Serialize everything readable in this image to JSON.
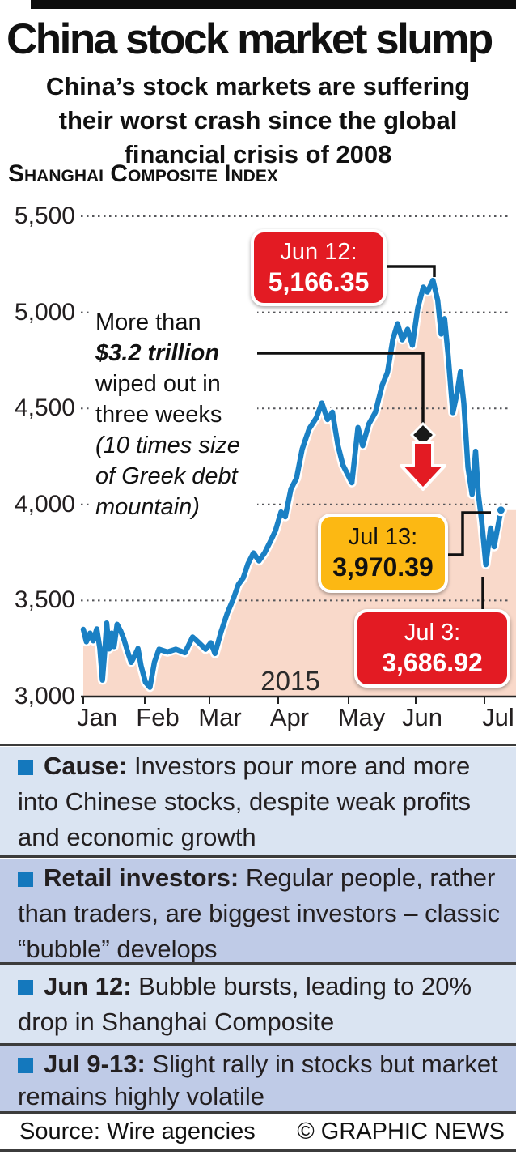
{
  "header": {
    "title": "China stock market slump",
    "subtitle_lines": [
      "China’s stock markets are suffering",
      "their worst crash since the global",
      "financial crisis of 2008"
    ],
    "chart_heading": "Shanghai Composite Index"
  },
  "chart_data": {
    "type": "area",
    "title": "Shanghai Composite Index",
    "xlabel": "",
    "ylabel": "",
    "ylim": [
      3000,
      5500
    ],
    "y_ticks": [
      3000,
      3500,
      4000,
      4500,
      5000,
      5500
    ],
    "x_tick_labels": [
      "Jan",
      "Feb",
      "Mar",
      "Apr",
      "May",
      "Jun",
      "Jul"
    ],
    "year_label": "2015",
    "grid": "dotted-horizontal",
    "series": [
      {
        "name": "Shanghai Composite Index 2015 (x = months since Jan 1)",
        "points": [
          [
            0,
            3350
          ],
          [
            0.05,
            3285
          ],
          [
            0.11,
            3330
          ],
          [
            0.16,
            3290
          ],
          [
            0.22,
            3352
          ],
          [
            0.27,
            3250
          ],
          [
            0.31,
            3086
          ],
          [
            0.35,
            3240
          ],
          [
            0.38,
            3383
          ],
          [
            0.42,
            3248
          ],
          [
            0.46,
            3330
          ],
          [
            0.5,
            3260
          ],
          [
            0.55,
            3376
          ],
          [
            0.61,
            3340
          ],
          [
            0.66,
            3298
          ],
          [
            0.72,
            3235
          ],
          [
            0.78,
            3178
          ],
          [
            0.84,
            3215
          ],
          [
            0.89,
            3250
          ],
          [
            0.94,
            3160
          ],
          [
            1.01,
            3075
          ],
          [
            1.08,
            3048
          ],
          [
            1.15,
            3180
          ],
          [
            1.22,
            3246
          ],
          [
            1.35,
            3232
          ],
          [
            1.48,
            3246
          ],
          [
            1.62,
            3228
          ],
          [
            1.74,
            3310
          ],
          [
            1.84,
            3279
          ],
          [
            1.94,
            3246
          ],
          [
            2.02,
            3280
          ],
          [
            2.08,
            3224
          ],
          [
            2.17,
            3338
          ],
          [
            2.26,
            3435
          ],
          [
            2.34,
            3502
          ],
          [
            2.42,
            3583
          ],
          [
            2.49,
            3617
          ],
          [
            2.56,
            3691
          ],
          [
            2.64,
            3748
          ],
          [
            2.72,
            3706
          ],
          [
            2.8,
            3747
          ],
          [
            2.89,
            3810
          ],
          [
            2.96,
            3864
          ],
          [
            3.04,
            3961
          ],
          [
            3.1,
            3936
          ],
          [
            3.18,
            4080
          ],
          [
            3.26,
            4136
          ],
          [
            3.34,
            4287
          ],
          [
            3.44,
            4394
          ],
          [
            3.54,
            4450
          ],
          [
            3.62,
            4528
          ],
          [
            3.7,
            4442
          ],
          [
            3.77,
            4480
          ],
          [
            3.85,
            4306
          ],
          [
            3.92,
            4205
          ],
          [
            4.05,
            4113
          ],
          [
            4.14,
            4400
          ],
          [
            4.21,
            4306
          ],
          [
            4.3,
            4418
          ],
          [
            4.4,
            4480
          ],
          [
            4.5,
            4620
          ],
          [
            4.58,
            4688
          ],
          [
            4.66,
            4860
          ],
          [
            4.73,
            4941
          ],
          [
            4.8,
            4857
          ],
          [
            4.88,
            4912
          ],
          [
            4.95,
            4829
          ],
          [
            5.03,
            5023
          ],
          [
            5.11,
            5131
          ],
          [
            5.17,
            5106
          ],
          [
            5.25,
            5166.35
          ],
          [
            5.32,
            5062
          ],
          [
            5.37,
            4887
          ],
          [
            5.42,
            4967
          ],
          [
            5.47,
            4785
          ],
          [
            5.54,
            4478
          ],
          [
            5.6,
            4576
          ],
          [
            5.65,
            4690
          ],
          [
            5.7,
            4527
          ],
          [
            5.76,
            4193
          ],
          [
            5.82,
            4053
          ],
          [
            5.87,
            4277
          ],
          [
            5.91,
            4054
          ],
          [
            5.96,
            3912
          ],
          [
            6.02,
            3686.92
          ],
          [
            6.09,
            3877
          ],
          [
            6.14,
            3780
          ],
          [
            6.24,
            3970.39
          ]
        ]
      }
    ],
    "annotations": [
      {
        "label": "Jun 12:",
        "value": "5,166.35"
      },
      {
        "label": "Jul 13:",
        "value": "3,970.39"
      },
      {
        "label": "Jul 3:",
        "value": "3,686.92"
      }
    ]
  },
  "axis": {
    "y_labels": [
      "5,500",
      "5,000",
      "4,500",
      "4,000",
      "3,500",
      "3,000"
    ],
    "x_labels": [
      "Jan",
      "Feb",
      "Mar",
      "Apr",
      "May",
      "Jun",
      "Jul"
    ],
    "year": "2015"
  },
  "annotation": {
    "line1": "More than",
    "line2": "$3.2 trillion",
    "line3": "wiped out in",
    "line4": "three weeks",
    "line5": "(10 times size",
    "line6": "of Greek debt",
    "line7": "mountain)"
  },
  "badges": {
    "jun12": {
      "label": "Jun 12:",
      "value": "5,166.35"
    },
    "jul13": {
      "label": "Jul 13:",
      "value": "3,970.39"
    },
    "jul3": {
      "label": "Jul 3:",
      "value": "3,686.92"
    }
  },
  "sections": [
    {
      "lead": "Cause:",
      "text": "Investors pour more and more into Chinese stocks, despite weak profits and economic growth"
    },
    {
      "lead": "Retail investors:",
      "text": "Regular people, rather than traders, are biggest investors – classic “bubble” develops"
    },
    {
      "lead": "Jun 12:",
      "text": "Bubble bursts, leading to 20% drop in Shanghai Composite"
    },
    {
      "lead": "Jul 9-13:",
      "text": "Slight rally in stocks but market remains highly volatile"
    }
  ],
  "footer": {
    "source": "Source: Wire agencies",
    "credit": "© GRAPHIC NEWS"
  },
  "colors": {
    "line_blue": "#1a80c4",
    "area_pink": "#f9d9ca",
    "badge_red": "#e31b23",
    "badge_yellow": "#fcb813",
    "bullet_blue": "#1478bd",
    "section_bg_light": "#dae4f2",
    "section_bg_dark": "#bfcbe7",
    "grid_gray": "#55565a",
    "black": "#111111"
  }
}
